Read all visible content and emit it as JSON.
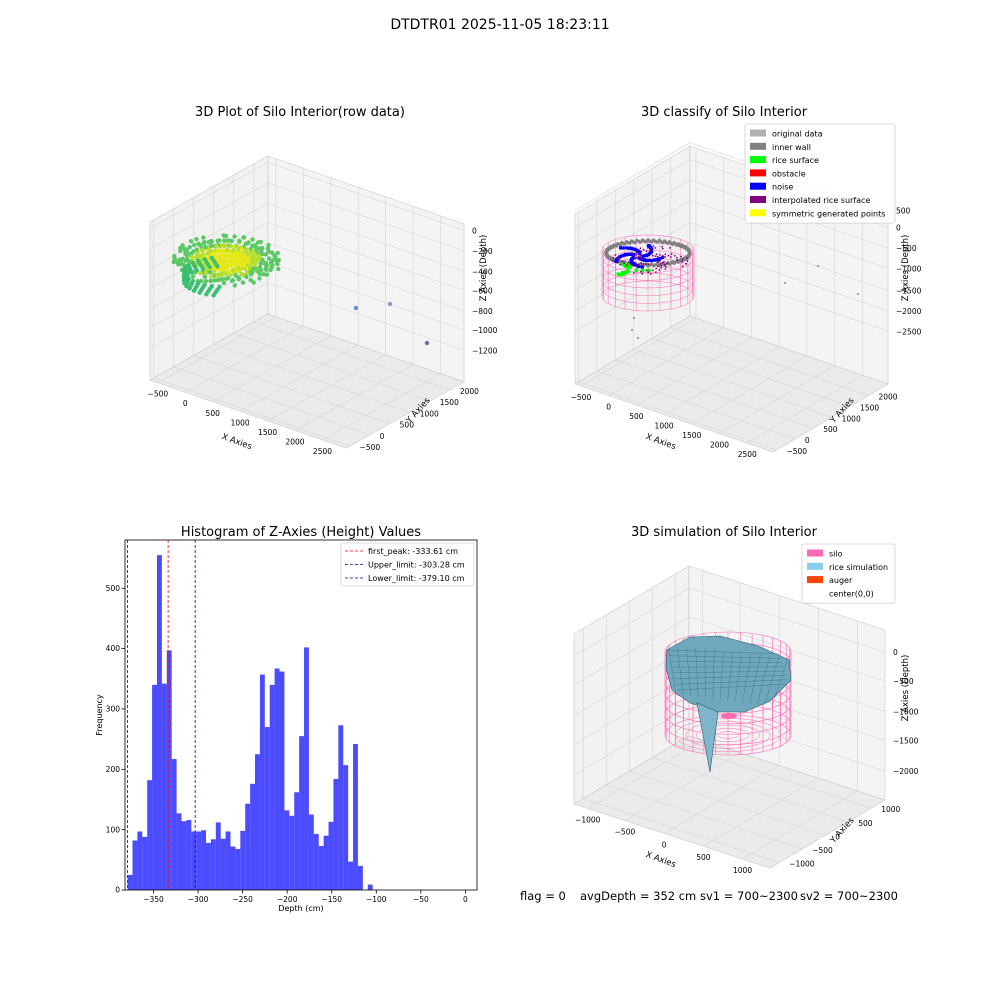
{
  "suptitle": "DTDTR01 2025-11-05 18:23:11",
  "panels": {
    "raw": {
      "title": "3D Plot of Silo Interior(row data)",
      "xlabel": "X Axies",
      "ylabel": "Y Axies",
      "zlabel": "Z Axies (Depth)",
      "xticks": [
        "−500",
        "0",
        "500",
        "1000",
        "1500",
        "2000",
        "2500"
      ],
      "yticks": [
        "−500",
        "0",
        "500",
        "1000",
        "1500",
        "2000"
      ],
      "zticks": [
        "0",
        "−200",
        "−400",
        "−600",
        "−800",
        "−1000",
        "−1200"
      ]
    },
    "classify": {
      "title": "3D classify of Silo Interior",
      "xlabel": "X Axies",
      "ylabel": "Y Axies",
      "zlabel": "Z Axies (Depth)",
      "xticks": [
        "−500",
        "0",
        "500",
        "1000",
        "1500",
        "2000",
        "2500"
      ],
      "yticks": [
        "−500",
        "0",
        "500",
        "1000",
        "1500",
        "2000"
      ],
      "zticks": [
        "500",
        "0",
        "−500",
        "−1000",
        "−1500",
        "−2000",
        "−2500"
      ],
      "legend": [
        {
          "label": "original data",
          "color": "#b0b0b0"
        },
        {
          "label": "inner wall",
          "color": "#808080"
        },
        {
          "label": "rice surface",
          "color": "#00ff00"
        },
        {
          "label": "obstacle",
          "color": "#ff0000"
        },
        {
          "label": "noise",
          "color": "#0000ff"
        },
        {
          "label": "interpolated rice surface",
          "color": "#800080"
        },
        {
          "label": "symmetric generated points",
          "color": "#ffff00"
        }
      ]
    },
    "simulation": {
      "title": "3D simulation of Silo Interior",
      "xlabel": "X Axies",
      "ylabel": "Y Axies",
      "zlabel": "Z Axies (Depth)",
      "xticks": [
        "−1000",
        "−500",
        "0",
        "500",
        "1000"
      ],
      "yticks": [
        "−1000",
        "−500",
        "0",
        "500",
        "1000"
      ],
      "zticks": [
        "0",
        "−500",
        "−1000",
        "−1500",
        "−2000"
      ],
      "legend": [
        {
          "label": "silo",
          "color": "#ff69b4"
        },
        {
          "label": "rice simulation",
          "color": "#87ceeb"
        },
        {
          "label": "auger",
          "color": "#ff4500"
        },
        {
          "label": "center(0,0)",
          "color": "#ffffff"
        }
      ]
    }
  },
  "chart_data": {
    "type": "bar",
    "title": "Histogram of Z-Axies (Height) Values",
    "xlabel": "Depth (cm)",
    "ylabel": "Frequency",
    "xlim": [
      -382,
      13
    ],
    "ylim": [
      0,
      580
    ],
    "xticks": [
      -350,
      -300,
      -250,
      -200,
      -150,
      -100,
      -50,
      0
    ],
    "yticks": [
      0,
      100,
      200,
      300,
      400,
      500
    ],
    "bin_start": -379.1,
    "bin_width": 5.5,
    "values": [
      25,
      82,
      97,
      88,
      182,
      340,
      555,
      342,
      397,
      217,
      127,
      114,
      116,
      97,
      97,
      99,
      78,
      84,
      112,
      85,
      97,
      72,
      68,
      98,
      143,
      176,
      225,
      357,
      270,
      340,
      367,
      362,
      132,
      123,
      162,
      255,
      402,
      125,
      93,
      73,
      90,
      113,
      184,
      273,
      207,
      47,
      242,
      40,
      0,
      9
    ],
    "series": [
      {
        "name": "",
        "color": "#0000ff"
      }
    ],
    "lines": [
      {
        "label": "first_peak: -333.61 cm",
        "x": -333.61,
        "color": "#ff0000"
      },
      {
        "label": "Upper_limit: -303.28 cm",
        "x": -303.28,
        "color": "#0000bb"
      },
      {
        "label": "Lower_limit: -379.10 cm",
        "x": -379.1,
        "color": "#0000bb"
      }
    ],
    "legend_position": "upper right"
  },
  "footer": {
    "flag": "flag = 0",
    "avg": "avgDepth = 352 cm",
    "sv1": "sv1 = 700~2300",
    "sv2": "sv2 = 700~2300"
  }
}
